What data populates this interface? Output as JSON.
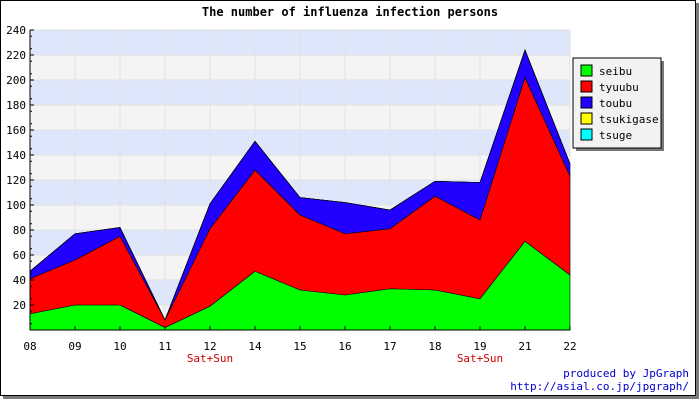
{
  "chart_data": {
    "type": "area",
    "title": "The number of influenza infection persons",
    "categories": [
      "08",
      "09",
      "10",
      "11",
      "12",
      "14",
      "15",
      "16",
      "17",
      "18",
      "19",
      "21",
      "22"
    ],
    "weekend_markers": [
      {
        "category": "12",
        "label": "Sat+Sun"
      },
      {
        "category": "19",
        "label": "Sat+Sun"
      }
    ],
    "ylim": [
      0,
      240
    ],
    "yticks": [
      20,
      40,
      60,
      80,
      100,
      120,
      140,
      160,
      180,
      200,
      220,
      240
    ],
    "stacked": true,
    "grid": true,
    "legend_position": "top-right",
    "series": [
      {
        "name": "seibu",
        "color": "#00ff00",
        "values": [
          13,
          20,
          20,
          2,
          19,
          47,
          32,
          28,
          33,
          32,
          25,
          71,
          44
        ]
      },
      {
        "name": "tyuubu",
        "color": "#ff0000",
        "values": [
          28,
          36,
          55,
          6,
          62,
          81,
          60,
          49,
          48,
          75,
          63,
          131,
          79
        ]
      },
      {
        "name": "toubu",
        "color": "#2200ff",
        "values": [
          6,
          21,
          7,
          0,
          20,
          23,
          14,
          25,
          15,
          12,
          30,
          22,
          10
        ]
      },
      {
        "name": "tsukigase",
        "color": "#ffff00",
        "values": [
          0,
          0,
          0,
          0,
          0,
          0,
          0,
          0,
          0,
          0,
          0,
          0,
          0
        ]
      },
      {
        "name": "tsuge",
        "color": "#00ffff",
        "values": [
          0,
          0,
          0,
          0,
          0,
          0,
          0,
          0,
          0,
          0,
          0,
          0,
          0
        ]
      }
    ]
  },
  "footer": {
    "line1": "produced by JpGraph",
    "line2": "http://asial.co.jp/jpgraph/"
  }
}
